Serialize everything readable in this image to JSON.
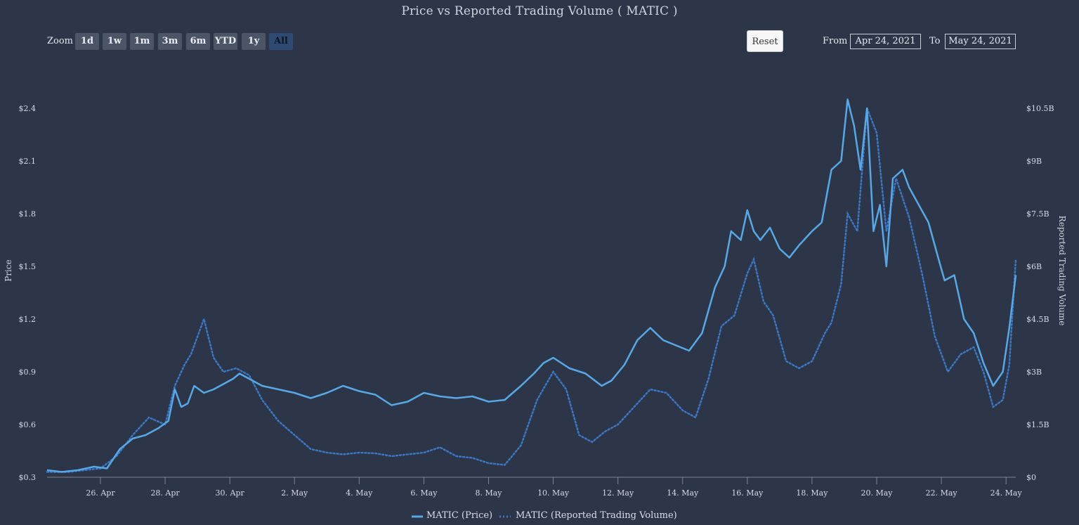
{
  "toolbar": {
    "zoom_label": "Zoom",
    "zoom_buttons": [
      "1d",
      "1w",
      "1m",
      "3m",
      "6m",
      "YTD",
      "1y",
      "All"
    ],
    "active_zoom": "All",
    "reset_label": "Reset",
    "from_label": "From",
    "from_value": "Apr 24, 2021",
    "to_label": "To",
    "to_value": "May 24, 2021"
  },
  "colors": {
    "background": "#2d3648",
    "price": "#58a8e6",
    "volume": "#3c77c4",
    "text": "#d8dde6"
  },
  "chart_data": {
    "type": "line",
    "title": "Price vs Reported Trading Volume ( MATIC )",
    "xlabel": "",
    "ylabel": "Price",
    "y2label": "Reported Trading Volume",
    "x_unit": "days since Apr 24, 2021 00:00",
    "xlim": [
      0.35,
      30.3
    ],
    "ylim": [
      0.3,
      2.4
    ],
    "y2lim": [
      0,
      10500000000
    ],
    "x_ticks": [
      {
        "x": 2,
        "label": "26. Apr"
      },
      {
        "x": 4,
        "label": "28. Apr"
      },
      {
        "x": 6,
        "label": "30. Apr"
      },
      {
        "x": 8,
        "label": "2. May"
      },
      {
        "x": 10,
        "label": "4. May"
      },
      {
        "x": 12,
        "label": "6. May"
      },
      {
        "x": 14,
        "label": "8. May"
      },
      {
        "x": 16,
        "label": "10. May"
      },
      {
        "x": 18,
        "label": "12. May"
      },
      {
        "x": 20,
        "label": "14. May"
      },
      {
        "x": 22,
        "label": "16. May"
      },
      {
        "x": 24,
        "label": "18. May"
      },
      {
        "x": 26,
        "label": "20. May"
      },
      {
        "x": 28,
        "label": "22. May"
      },
      {
        "x": 30,
        "label": "24. May"
      }
    ],
    "y_ticks": [
      {
        "v": 0.3,
        "label": "$0.3"
      },
      {
        "v": 0.6,
        "label": "$0.6"
      },
      {
        "v": 0.9,
        "label": "$0.9"
      },
      {
        "v": 1.2,
        "label": "$1.2"
      },
      {
        "v": 1.5,
        "label": "$1.5"
      },
      {
        "v": 1.8,
        "label": "$1.8"
      },
      {
        "v": 2.1,
        "label": "$2.1"
      },
      {
        "v": 2.4,
        "label": "$2.4"
      }
    ],
    "y2_ticks": [
      {
        "v": 0,
        "label": "$0"
      },
      {
        "v": 1500000000,
        "label": "$1.5B"
      },
      {
        "v": 3000000000,
        "label": "$3B"
      },
      {
        "v": 4500000000,
        "label": "$4.5B"
      },
      {
        "v": 6000000000,
        "label": "$6B"
      },
      {
        "v": 7500000000,
        "label": "$7.5B"
      },
      {
        "v": 9000000000,
        "label": "$9B"
      },
      {
        "v": 10500000000,
        "label": "$10.5B"
      }
    ],
    "series": [
      {
        "name": "MATIC (Price)",
        "axis": "left",
        "style": "solid",
        "points": [
          [
            0.35,
            0.34
          ],
          [
            0.8,
            0.33
          ],
          [
            1.3,
            0.34
          ],
          [
            1.8,
            0.36
          ],
          [
            2.2,
            0.35
          ],
          [
            2.6,
            0.46
          ],
          [
            3.0,
            0.52
          ],
          [
            3.4,
            0.54
          ],
          [
            3.8,
            0.58
          ],
          [
            4.1,
            0.62
          ],
          [
            4.3,
            0.8
          ],
          [
            4.5,
            0.7
          ],
          [
            4.7,
            0.72
          ],
          [
            4.9,
            0.82
          ],
          [
            5.2,
            0.78
          ],
          [
            5.5,
            0.8
          ],
          [
            5.8,
            0.83
          ],
          [
            6.1,
            0.86
          ],
          [
            6.3,
            0.89
          ],
          [
            6.6,
            0.86
          ],
          [
            7.0,
            0.82
          ],
          [
            7.5,
            0.8
          ],
          [
            8.0,
            0.78
          ],
          [
            8.5,
            0.75
          ],
          [
            9.0,
            0.78
          ],
          [
            9.5,
            0.82
          ],
          [
            10.0,
            0.79
          ],
          [
            10.5,
            0.77
          ],
          [
            11.0,
            0.71
          ],
          [
            11.5,
            0.73
          ],
          [
            12.0,
            0.78
          ],
          [
            12.5,
            0.76
          ],
          [
            13.0,
            0.75
          ],
          [
            13.5,
            0.76
          ],
          [
            14.0,
            0.73
          ],
          [
            14.5,
            0.74
          ],
          [
            15.0,
            0.82
          ],
          [
            15.4,
            0.89
          ],
          [
            15.7,
            0.95
          ],
          [
            16.0,
            0.98
          ],
          [
            16.5,
            0.92
          ],
          [
            17.0,
            0.89
          ],
          [
            17.5,
            0.82
          ],
          [
            17.8,
            0.85
          ],
          [
            18.2,
            0.94
          ],
          [
            18.6,
            1.08
          ],
          [
            19.0,
            1.15
          ],
          [
            19.4,
            1.08
          ],
          [
            19.8,
            1.05
          ],
          [
            20.2,
            1.02
          ],
          [
            20.6,
            1.12
          ],
          [
            21.0,
            1.38
          ],
          [
            21.3,
            1.5
          ],
          [
            21.5,
            1.7
          ],
          [
            21.8,
            1.65
          ],
          [
            22.0,
            1.82
          ],
          [
            22.2,
            1.7
          ],
          [
            22.4,
            1.65
          ],
          [
            22.7,
            1.72
          ],
          [
            23.0,
            1.6
          ],
          [
            23.3,
            1.55
          ],
          [
            23.6,
            1.62
          ],
          [
            24.0,
            1.7
          ],
          [
            24.3,
            1.75
          ],
          [
            24.6,
            2.05
          ],
          [
            24.9,
            2.1
          ],
          [
            25.1,
            2.45
          ],
          [
            25.3,
            2.3
          ],
          [
            25.5,
            2.05
          ],
          [
            25.7,
            2.4
          ],
          [
            25.9,
            1.7
          ],
          [
            26.1,
            1.85
          ],
          [
            26.3,
            1.5
          ],
          [
            26.5,
            2.0
          ],
          [
            26.8,
            2.05
          ],
          [
            27.0,
            1.95
          ],
          [
            27.3,
            1.85
          ],
          [
            27.6,
            1.75
          ],
          [
            27.9,
            1.55
          ],
          [
            28.1,
            1.42
          ],
          [
            28.4,
            1.45
          ],
          [
            28.7,
            1.2
          ],
          [
            29.0,
            1.12
          ],
          [
            29.3,
            0.95
          ],
          [
            29.6,
            0.82
          ],
          [
            29.9,
            0.9
          ],
          [
            30.1,
            1.15
          ],
          [
            30.3,
            1.45
          ]
        ]
      },
      {
        "name": "MATIC (Reported Trading Volume)",
        "axis": "right",
        "style": "dotted",
        "points": [
          [
            0.35,
            150000000.0
          ],
          [
            1.0,
            150000000.0
          ],
          [
            1.5,
            200000000.0
          ],
          [
            2.0,
            250000000.0
          ],
          [
            2.5,
            600000000.0
          ],
          [
            3.0,
            1200000000.0
          ],
          [
            3.5,
            1700000000.0
          ],
          [
            4.0,
            1500000000.0
          ],
          [
            4.3,
            2600000000.0
          ],
          [
            4.6,
            3200000000.0
          ],
          [
            4.8,
            3500000000.0
          ],
          [
            5.0,
            4000000000.0
          ],
          [
            5.2,
            4500000000.0
          ],
          [
            5.5,
            3400000000.0
          ],
          [
            5.8,
            3000000000.0
          ],
          [
            6.2,
            3100000000.0
          ],
          [
            6.6,
            2900000000.0
          ],
          [
            7.0,
            2200000000.0
          ],
          [
            7.5,
            1600000000.0
          ],
          [
            8.0,
            1200000000.0
          ],
          [
            8.5,
            800000000.0
          ],
          [
            9.0,
            700000000.0
          ],
          [
            9.5,
            650000000.0
          ],
          [
            10.0,
            700000000.0
          ],
          [
            10.5,
            680000000.0
          ],
          [
            11.0,
            600000000.0
          ],
          [
            11.5,
            650000000.0
          ],
          [
            12.0,
            700000000.0
          ],
          [
            12.5,
            850000000.0
          ],
          [
            13.0,
            600000000.0
          ],
          [
            13.5,
            550000000.0
          ],
          [
            14.0,
            400000000.0
          ],
          [
            14.5,
            350000000.0
          ],
          [
            15.0,
            900000000.0
          ],
          [
            15.5,
            2200000000.0
          ],
          [
            16.0,
            3000000000.0
          ],
          [
            16.4,
            2500000000.0
          ],
          [
            16.8,
            1200000000.0
          ],
          [
            17.2,
            1000000000.0
          ],
          [
            17.6,
            1300000000.0
          ],
          [
            18.0,
            1500000000.0
          ],
          [
            18.5,
            2000000000.0
          ],
          [
            19.0,
            2500000000.0
          ],
          [
            19.5,
            2400000000.0
          ],
          [
            20.0,
            1900000000.0
          ],
          [
            20.4,
            1700000000.0
          ],
          [
            20.8,
            2800000000.0
          ],
          [
            21.2,
            4300000000.0
          ],
          [
            21.6,
            4600000000.0
          ],
          [
            22.0,
            5800000000.0
          ],
          [
            22.2,
            6200000000.0
          ],
          [
            22.5,
            5000000000.0
          ],
          [
            22.8,
            4600000000.0
          ],
          [
            23.2,
            3300000000.0
          ],
          [
            23.6,
            3100000000.0
          ],
          [
            24.0,
            3300000000.0
          ],
          [
            24.4,
            4100000000.0
          ],
          [
            24.6,
            4400000000.0
          ],
          [
            24.9,
            5500000000.0
          ],
          [
            25.1,
            7500000000.0
          ],
          [
            25.4,
            7000000000.0
          ],
          [
            25.7,
            10500000000.0
          ],
          [
            26.0,
            9800000000.0
          ],
          [
            26.3,
            7000000000.0
          ],
          [
            26.6,
            8500000000.0
          ],
          [
            27.0,
            7400000000.0
          ],
          [
            27.4,
            5800000000.0
          ],
          [
            27.8,
            4000000000.0
          ],
          [
            28.2,
            3000000000.0
          ],
          [
            28.6,
            3500000000.0
          ],
          [
            29.0,
            3700000000.0
          ],
          [
            29.3,
            3000000000.0
          ],
          [
            29.6,
            2000000000.0
          ],
          [
            29.9,
            2200000000.0
          ],
          [
            30.1,
            3200000000.0
          ],
          [
            30.3,
            6200000000.0
          ]
        ]
      }
    ],
    "legend": [
      "MATIC (Price)",
      "MATIC (Reported Trading Volume)"
    ],
    "legend_position": "bottom-center"
  }
}
